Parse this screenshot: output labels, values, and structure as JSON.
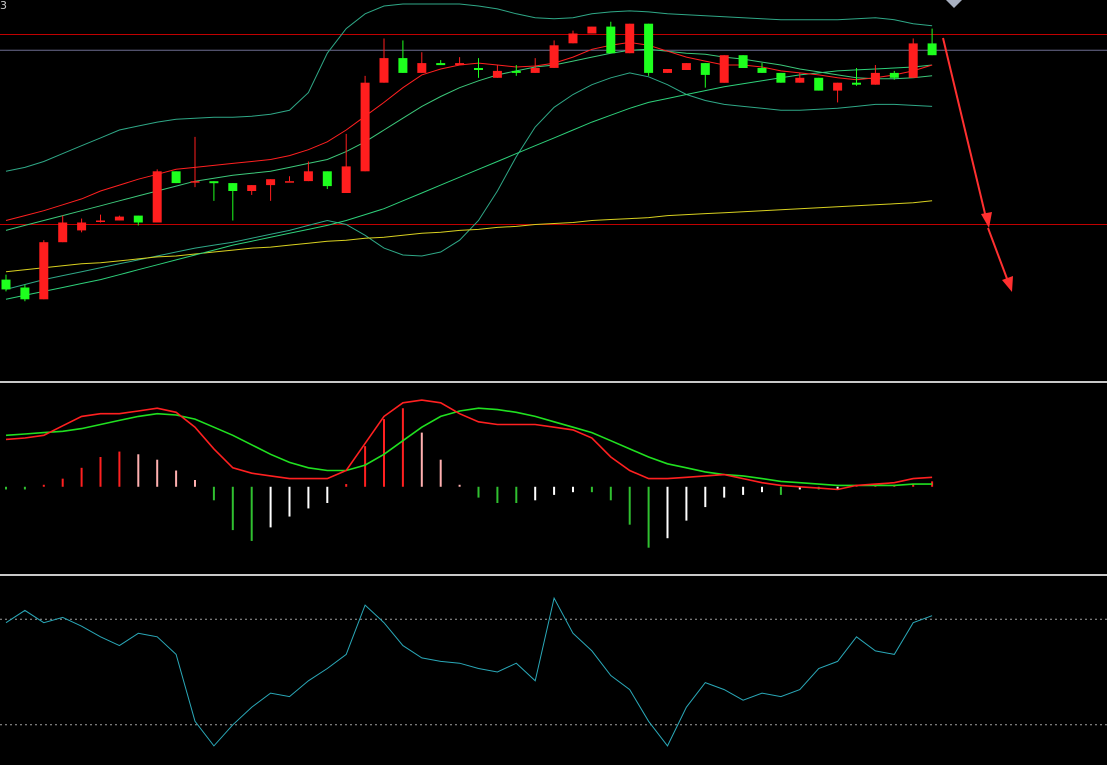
{
  "corner_label": "3",
  "colors": {
    "background": "#000000",
    "separator": "#c8c8c8",
    "up_candle": "#ff1e1e",
    "down_candle": "#1eff1e",
    "ma5": "#ff2020",
    "ma10": "#3cc87a",
    "ma20": "#2ed07a",
    "ma60": "#d8d020",
    "boll": "#2fa887",
    "hline_red": "#c00000",
    "hline_gray": "#6c6c90",
    "dif": "#ff2020",
    "dea": "#20e020",
    "hist_up_strong": "#ff2020",
    "hist_up_weak": "#ffb0b0",
    "hist_down_strong": "#30c030",
    "hist_down_weak": "#ffffff",
    "osc_line": "#2aa8b8",
    "osc_ref": "#a0a0a0",
    "arrow": "#ff3030",
    "marker": "#a8b0c0"
  },
  "chart_data": [
    {
      "type": "candlestick",
      "panel": "price",
      "ylim": [
        0,
        380
      ],
      "candles": [
        [
          100,
          105,
          90,
          88
        ],
        [
          92,
          95,
          80,
          78
        ],
        [
          80,
          96,
          138,
          140
        ],
        [
          138,
          140,
          158,
          165
        ],
        [
          150,
          148,
          158,
          162
        ],
        [
          160,
          158,
          160,
          166
        ],
        [
          160,
          162,
          164,
          165
        ],
        [
          165,
          158,
          158,
          155
        ],
        [
          158,
          167,
          210,
          212
        ],
        [
          210,
          205,
          198,
          198
        ],
        [
          200,
          245,
          200,
          194
        ],
        [
          200,
          185,
          198,
          180
        ],
        [
          198,
          160,
          190,
          162
        ],
        [
          190,
          195,
          196,
          186
        ],
        [
          196,
          182,
          202,
          180
        ],
        [
          200,
          203,
          200,
          205
        ],
        [
          200,
          218,
          210,
          220
        ],
        [
          210,
          200,
          195,
          192
        ],
        [
          188,
          248,
          215,
          240
        ],
        [
          210,
          255,
          300,
          307
        ],
        [
          300,
          315,
          325,
          345
        ],
        [
          325,
          343,
          310,
          310
        ],
        [
          310,
          330,
          320,
          331
        ],
        [
          320,
          323,
          318,
          318
        ],
        [
          318,
          322,
          320,
          326
        ],
        [
          315,
          325,
          313,
          305
        ],
        [
          305,
          310,
          312,
          318
        ],
        [
          312,
          318,
          310,
          307
        ],
        [
          310,
          322,
          315,
          325
        ],
        [
          315,
          332,
          338,
          343
        ],
        [
          340,
          345,
          350,
          353
        ],
        [
          350,
          357,
          357,
          352
        ],
        [
          357,
          332,
          330,
          362
        ],
        [
          330,
          355,
          360,
          356
        ],
        [
          360,
          335,
          310,
          307
        ],
        [
          310,
          313,
          314,
          313
        ],
        [
          313,
          318,
          320,
          320
        ],
        [
          320,
          308,
          308,
          295
        ],
        [
          300,
          320,
          328,
          320
        ],
        [
          328,
          315,
          315,
          316
        ],
        [
          315,
          318,
          310,
          320
        ],
        [
          310,
          300,
          300,
          302
        ],
        [
          300,
          310,
          305,
          308
        ],
        [
          305,
          295,
          292,
          292
        ],
        [
          292,
          280,
          300,
          288
        ],
        [
          300,
          315,
          298,
          297
        ],
        [
          298,
          308,
          310,
          318
        ],
        [
          310,
          312,
          305,
          303
        ],
        [
          305,
          307,
          340,
          345
        ],
        [
          340,
          355,
          328,
          330
        ]
      ],
      "ma5": [
        160,
        165,
        170,
        176,
        182,
        190,
        196,
        202,
        207,
        212,
        214,
        216,
        218,
        220,
        222,
        226,
        232,
        240,
        252,
        266,
        280,
        295,
        308,
        314,
        318,
        320,
        318,
        316,
        317,
        320,
        326,
        334,
        338,
        341,
        338,
        332,
        326,
        322,
        318,
        318,
        316,
        312,
        310,
        308,
        305,
        303,
        305,
        308,
        312,
        318
      ],
      "ma10": [
        150,
        155,
        160,
        165,
        170,
        175,
        180,
        185,
        190,
        195,
        200,
        203,
        206,
        208,
        210,
        214,
        218,
        222,
        230,
        240,
        252,
        264,
        276,
        286,
        295,
        302,
        308,
        312,
        316,
        318,
        322,
        326,
        330,
        333,
        334,
        332,
        330,
        329,
        326,
        324,
        321,
        318,
        314,
        311,
        308,
        305,
        304,
        304,
        305,
        307
      ],
      "ma20": [
        80,
        84,
        88,
        92,
        96,
        100,
        105,
        110,
        115,
        120,
        125,
        130,
        135,
        139,
        143,
        147,
        151,
        155,
        160,
        166,
        172,
        180,
        188,
        196,
        204,
        212,
        220,
        228,
        236,
        244,
        252,
        260,
        267,
        274,
        280,
        284,
        288,
        292,
        296,
        299,
        302,
        305,
        308,
        310,
        312,
        313,
        314,
        315,
        316,
        318
      ],
      "ma60": [
        108,
        110,
        112,
        114,
        116,
        117,
        119,
        121,
        123,
        124,
        126,
        128,
        130,
        132,
        133,
        135,
        137,
        139,
        140,
        142,
        143,
        145,
        147,
        148,
        150,
        151,
        153,
        154,
        156,
        157,
        158,
        160,
        161,
        162,
        163,
        165,
        166,
        167,
        168,
        169,
        170,
        171,
        172,
        173,
        174,
        175,
        176,
        177,
        178,
        180
      ],
      "boll_upper": [
        210,
        214,
        220,
        228,
        236,
        244,
        252,
        256,
        260,
        263,
        264,
        265,
        265,
        266,
        268,
        272,
        290,
        330,
        355,
        370,
        378,
        380,
        380,
        380,
        380,
        378,
        375,
        370,
        366,
        365,
        366,
        370,
        372,
        373,
        372,
        370,
        369,
        368,
        367,
        366,
        365,
        364,
        364,
        364,
        364,
        365,
        366,
        364,
        360,
        358
      ],
      "boll_lower": [
        90,
        95,
        100,
        104,
        108,
        112,
        116,
        120,
        124,
        128,
        132,
        135,
        138,
        142,
        146,
        150,
        155,
        160,
        156,
        145,
        132,
        125,
        124,
        128,
        140,
        160,
        190,
        225,
        255,
        275,
        288,
        298,
        305,
        310,
        306,
        298,
        288,
        282,
        278,
        276,
        274,
        272,
        272,
        273,
        274,
        276,
        278,
        278,
        277,
        276
      ],
      "hlines": [
        349,
        333,
        156
      ]
    },
    {
      "type": "macd",
      "panel": "macd",
      "ylim": [
        -60,
        70
      ],
      "dif": [
        35,
        36,
        38,
        45,
        52,
        54,
        54,
        56,
        58,
        55,
        44,
        28,
        14,
        10,
        8,
        6,
        6,
        6,
        12,
        32,
        52,
        62,
        64,
        62,
        54,
        48,
        46,
        46,
        46,
        44,
        42,
        36,
        22,
        12,
        6,
        6,
        7,
        8,
        9,
        6,
        3,
        1,
        0,
        -1,
        -2,
        1,
        2,
        3,
        6,
        7
      ],
      "dea": [
        38,
        39,
        40,
        41,
        43,
        46,
        49,
        52,
        54,
        53,
        50,
        44,
        38,
        31,
        24,
        18,
        14,
        12,
        12,
        16,
        24,
        34,
        44,
        52,
        56,
        58,
        57,
        55,
        52,
        48,
        44,
        40,
        34,
        28,
        22,
        17,
        14,
        11,
        9,
        8,
        6,
        4,
        3,
        2,
        1,
        1,
        1,
        1,
        2,
        2
      ],
      "hist": [
        -2,
        -2,
        0,
        6,
        14,
        22,
        26,
        24,
        20,
        12,
        5,
        -10,
        -32,
        -40,
        -30,
        -22,
        -16,
        -12,
        2,
        30,
        50,
        58,
        40,
        20,
        0,
        -8,
        -12,
        -12,
        -10,
        -6,
        -4,
        -4,
        -10,
        -28,
        -45,
        -38,
        -25,
        -15,
        -8,
        -6,
        -4,
        -6,
        -2,
        -2,
        -1,
        0,
        1,
        1,
        2,
        4
      ]
    },
    {
      "type": "line",
      "panel": "oscillator",
      "ylim": [
        0,
        100
      ],
      "ref_lines": [
        80,
        20
      ],
      "values": [
        78,
        85,
        78,
        81,
        76,
        70,
        65,
        72,
        70,
        60,
        22,
        8,
        20,
        30,
        38,
        36,
        45,
        52,
        60,
        88,
        78,
        65,
        58,
        56,
        55,
        52,
        50,
        55,
        45,
        92,
        72,
        62,
        48,
        40,
        22,
        8,
        30,
        44,
        40,
        34,
        38,
        36,
        40,
        52,
        56,
        70,
        62,
        60,
        78,
        82
      ]
    }
  ]
}
